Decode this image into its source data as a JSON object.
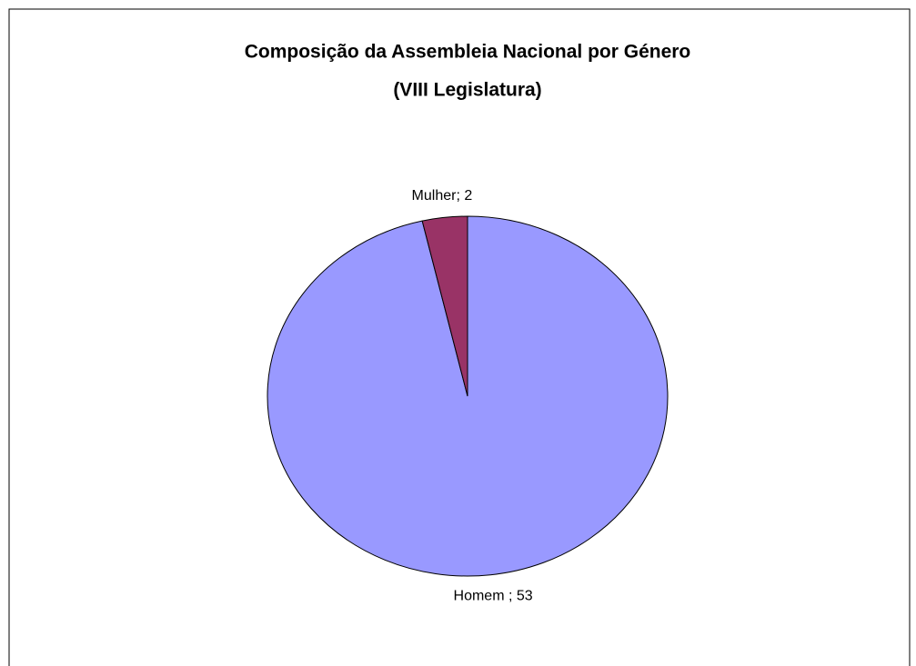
{
  "chart_data": {
    "type": "pie",
    "title": "Composição da Assembleia Nacional por Género",
    "subtitle": "(VIII Legislatura)",
    "values": [
      53,
      2
    ],
    "value_labels": [
      "Homem ; 53",
      "Mulher; 2"
    ],
    "colors": [
      "#9999ff",
      "#993366"
    ]
  }
}
